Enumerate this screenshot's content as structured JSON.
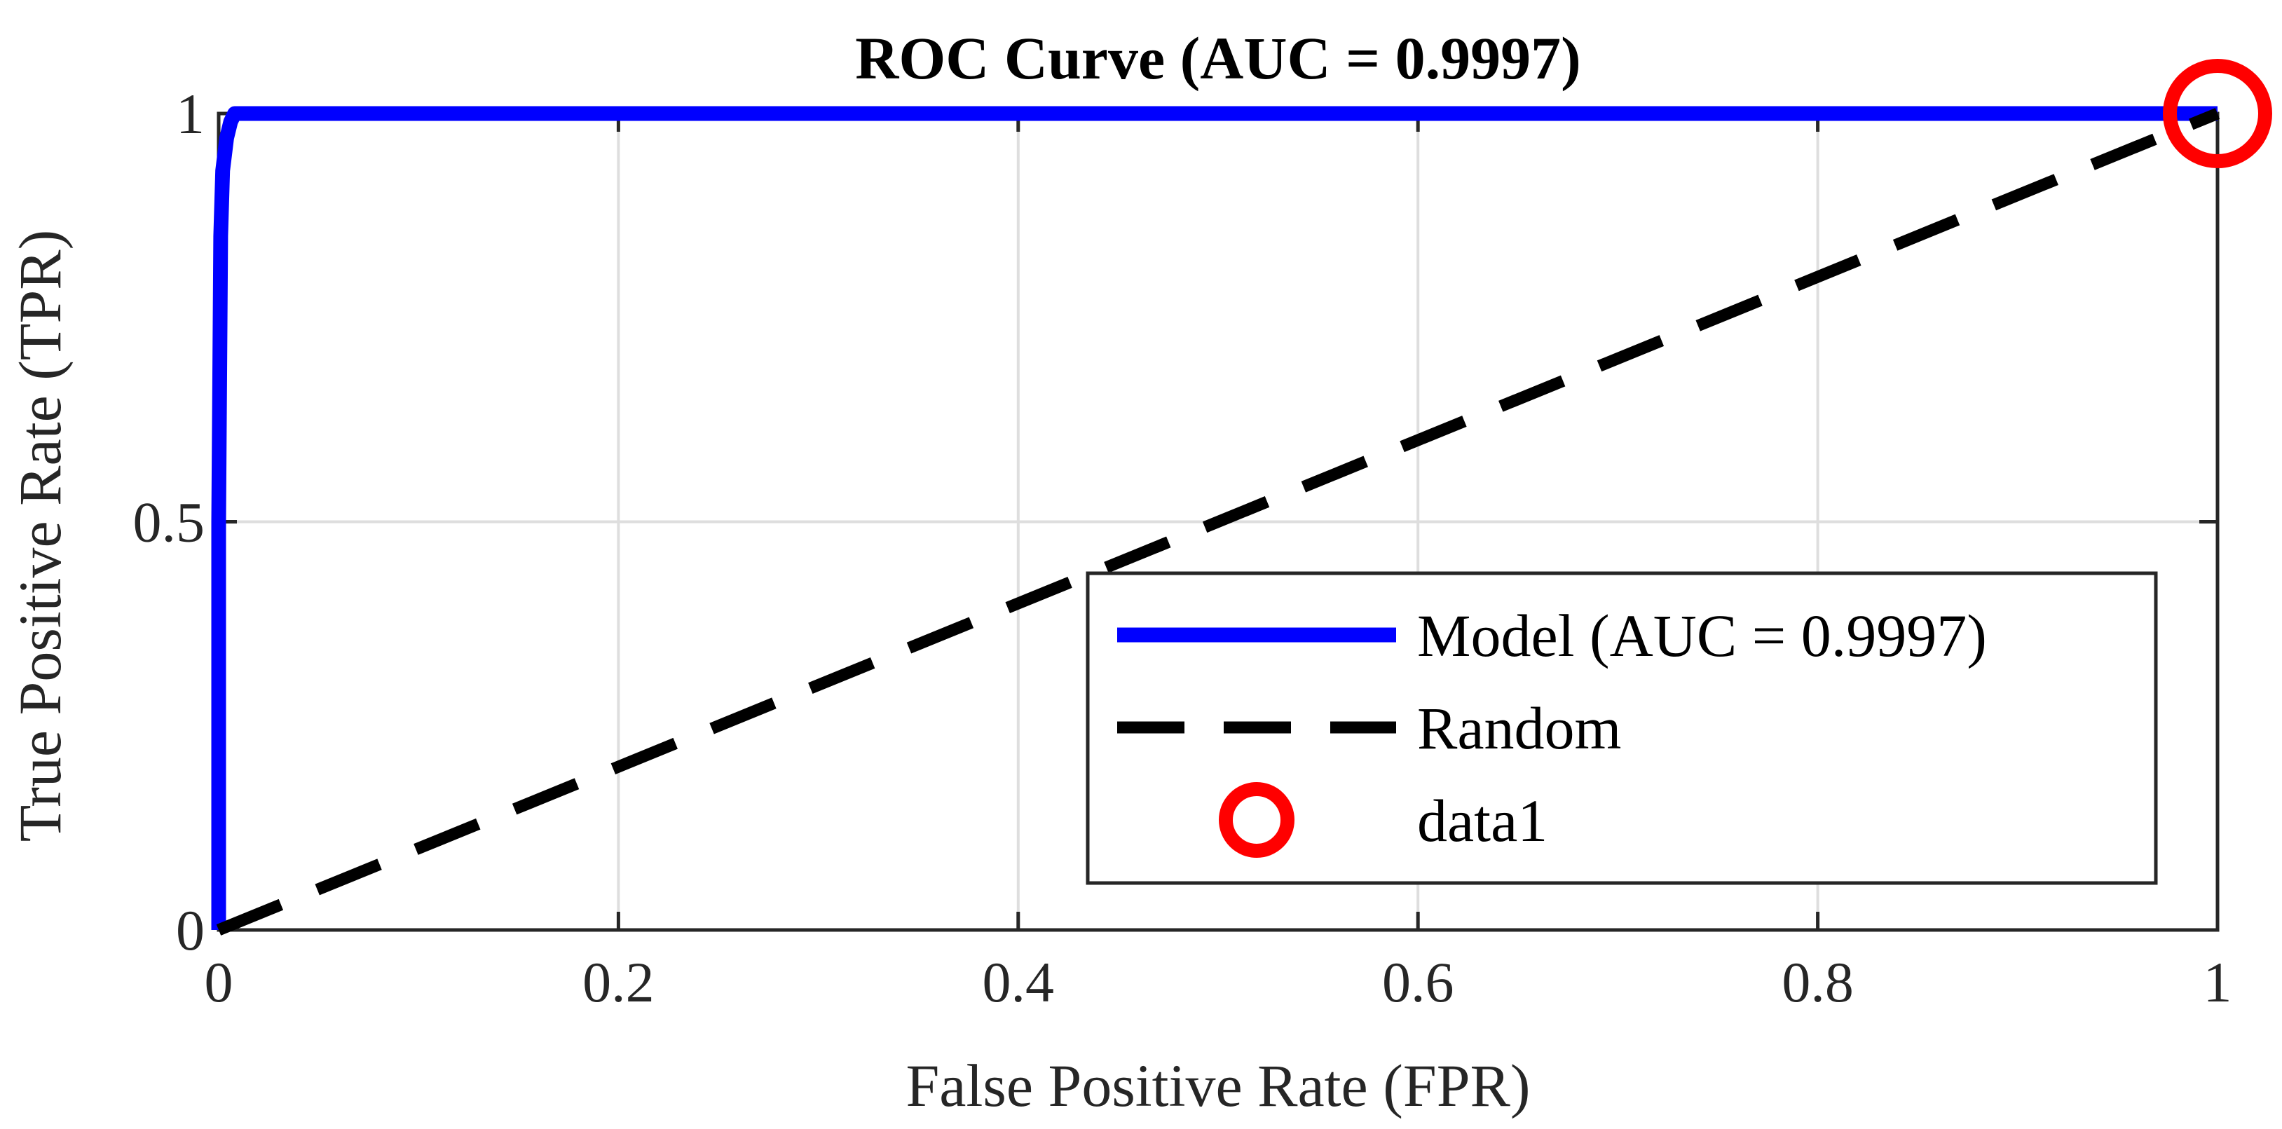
{
  "chart_data": {
    "type": "line",
    "title": "ROC Curve (AUC = 0.9997)",
    "xlabel": "False Positive Rate (FPR)",
    "ylabel": "True Positive Rate (TPR)",
    "xlim": [
      0,
      1
    ],
    "ylim": [
      0,
      1
    ],
    "xticks": [
      0,
      0.2,
      0.4,
      0.6,
      0.8,
      1
    ],
    "xtick_labels": [
      "0",
      "0.2",
      "0.4",
      "0.6",
      "0.8",
      "1"
    ],
    "yticks": [
      0,
      0.5,
      1
    ],
    "ytick_labels": [
      "0",
      "0.5",
      "1"
    ],
    "grid": true,
    "legend_position": "bottom-right",
    "series": [
      {
        "name": "Model (AUC = 0.9997)",
        "style": "solid",
        "color": "#0000ff",
        "x": [
          0,
          0,
          0.001,
          0.002,
          0.004,
          0.006,
          0.008,
          1
        ],
        "y": [
          0,
          0.5,
          0.85,
          0.93,
          0.97,
          0.99,
          1,
          1
        ]
      },
      {
        "name": "Random",
        "style": "dashed",
        "color": "#000000",
        "x": [
          0,
          1
        ],
        "y": [
          0,
          1
        ]
      },
      {
        "name": "data1",
        "style": "marker-circle",
        "color": "#ff0000",
        "x": [
          1
        ],
        "y": [
          1
        ]
      }
    ]
  }
}
